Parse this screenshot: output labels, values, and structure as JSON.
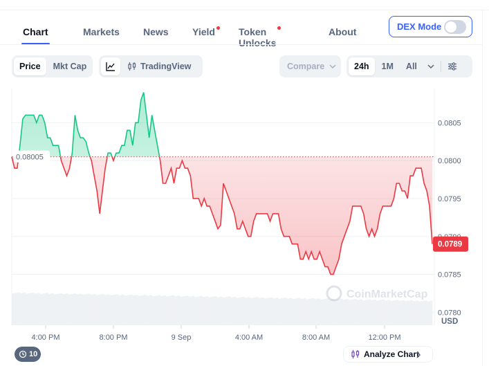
{
  "nav": {
    "tabs": [
      {
        "label": "Chart",
        "active": true,
        "dot": false
      },
      {
        "label": "Markets",
        "active": false,
        "dot": false
      },
      {
        "label": "News",
        "active": false,
        "dot": false
      },
      {
        "label": "Yield",
        "active": false,
        "dot": true
      },
      {
        "label": "Token Unlocks",
        "active": false,
        "dot": true
      },
      {
        "label": "About",
        "active": false,
        "dot": false
      }
    ],
    "dex_mode_label": "DEX Mode",
    "dex_mode_on": false
  },
  "toolbar": {
    "price_label": "Price",
    "mktcap_label": "Mkt Cap",
    "tradingview_label": "TradingView",
    "compare_label": "Compare",
    "range_24h": "24h",
    "range_1m": "1M",
    "range_all": "All"
  },
  "footer": {
    "history_count": "10",
    "analyze_label": "Analyze Chart"
  },
  "colors": {
    "up": "#16c784",
    "down": "#ea3943",
    "accent": "#3861fb"
  },
  "chart_data": {
    "type": "line",
    "reference_value": 0.08005,
    "reference_label": "0.08005",
    "current_value": 0.0789,
    "current_label": "0.0789",
    "currency_label": "USD",
    "watermark": "CoinMarketCap",
    "y_ticks": [
      "0.0805",
      "0.0800",
      "0.0795",
      "0.0790",
      "0.0785",
      "0.0780"
    ],
    "x_ticks": [
      "4:00 PM",
      "8:00 PM",
      "9 Sep",
      "4:00 AM",
      "8:00 AM",
      "12:00 PM"
    ],
    "price_points": [
      [
        0,
        0.08005
      ],
      [
        1,
        0.0799
      ],
      [
        2,
        0.0799
      ],
      [
        3,
        0.0802
      ],
      [
        4,
        0.08055
      ],
      [
        5,
        0.0806
      ],
      [
        6,
        0.0806
      ],
      [
        7,
        0.0806
      ],
      [
        8,
        0.0806
      ],
      [
        9,
        0.0805
      ],
      [
        10,
        0.0806
      ],
      [
        11,
        0.0806
      ],
      [
        12,
        0.0805
      ],
      [
        13,
        0.0803
      ],
      [
        14,
        0.0803
      ],
      [
        15,
        0.0802
      ],
      [
        16,
        0.0802
      ],
      [
        17,
        0.0802
      ],
      [
        18,
        0.08
      ],
      [
        19,
        0.0799
      ],
      [
        20,
        0.0798
      ],
      [
        21,
        0.0799
      ],
      [
        22,
        0.0801
      ],
      [
        23,
        0.0806
      ],
      [
        24,
        0.0804
      ],
      [
        25,
        0.0803
      ],
      [
        26,
        0.0803
      ],
      [
        27,
        0.08025
      ],
      [
        28,
        0.0801
      ],
      [
        29,
        0.08
      ],
      [
        30,
        0.0798
      ],
      [
        31,
        0.0796
      ],
      [
        32,
        0.0793
      ],
      [
        33,
        0.0796
      ],
      [
        34,
        0.0799
      ],
      [
        35,
        0.0801
      ],
      [
        36,
        0.0801
      ],
      [
        37,
        0.08
      ],
      [
        38,
        0.0801
      ],
      [
        39,
        0.0801
      ],
      [
        40,
        0.0802
      ],
      [
        41,
        0.0802
      ],
      [
        42,
        0.0804
      ],
      [
        43,
        0.0804
      ],
      [
        44,
        0.0802
      ],
      [
        45,
        0.0805
      ],
      [
        46,
        0.0805
      ],
      [
        47,
        0.0808
      ],
      [
        48,
        0.0809
      ],
      [
        49,
        0.0806
      ],
      [
        50,
        0.0803
      ],
      [
        51,
        0.0806
      ],
      [
        52,
        0.0804
      ],
      [
        53,
        0.0802
      ],
      [
        54,
        0.08
      ],
      [
        55,
        0.0797
      ],
      [
        56,
        0.0797
      ],
      [
        57,
        0.0798
      ],
      [
        58,
        0.0799
      ],
      [
        59,
        0.0797
      ],
      [
        60,
        0.0799
      ],
      [
        61,
        0.0799
      ],
      [
        62,
        0.08
      ],
      [
        63,
        0.0799
      ],
      [
        64,
        0.0799
      ],
      [
        65,
        0.0798
      ],
      [
        66,
        0.0795
      ],
      [
        67,
        0.0795
      ],
      [
        68,
        0.0795
      ],
      [
        69,
        0.0794
      ],
      [
        70,
        0.0795
      ],
      [
        71,
        0.0794
      ],
      [
        72,
        0.0794
      ],
      [
        73,
        0.0793
      ],
      [
        74,
        0.0792
      ],
      [
        75,
        0.0791
      ],
      [
        76,
        0.07915
      ],
      [
        77,
        0.0797
      ],
      [
        78,
        0.0796
      ],
      [
        79,
        0.0795
      ],
      [
        80,
        0.0794
      ],
      [
        81,
        0.0793
      ],
      [
        82,
        0.0791
      ],
      [
        83,
        0.0791
      ],
      [
        84,
        0.0792
      ],
      [
        85,
        0.0791
      ],
      [
        86,
        0.079
      ],
      [
        87,
        0.079
      ],
      [
        88,
        0.0792
      ],
      [
        89,
        0.0793
      ],
      [
        90,
        0.0793
      ],
      [
        91,
        0.0793
      ],
      [
        92,
        0.0793
      ],
      [
        93,
        0.0793
      ],
      [
        94,
        0.0792
      ],
      [
        95,
        0.0793
      ],
      [
        96,
        0.0793
      ],
      [
        97,
        0.0793
      ],
      [
        98,
        0.0791
      ],
      [
        99,
        0.079
      ],
      [
        100,
        0.079
      ],
      [
        101,
        0.079
      ],
      [
        102,
        0.0789
      ],
      [
        103,
        0.0789
      ],
      [
        104,
        0.0789
      ],
      [
        105,
        0.0787
      ],
      [
        106,
        0.0787
      ],
      [
        107,
        0.0788
      ],
      [
        108,
        0.0787
      ],
      [
        109,
        0.0788
      ],
      [
        110,
        0.0787
      ],
      [
        111,
        0.0787
      ],
      [
        112,
        0.0788
      ],
      [
        113,
        0.0787
      ],
      [
        114,
        0.0786
      ],
      [
        115,
        0.0786
      ],
      [
        116,
        0.0785
      ],
      [
        117,
        0.0785
      ],
      [
        118,
        0.0786
      ],
      [
        119,
        0.0787
      ],
      [
        120,
        0.0789
      ],
      [
        121,
        0.079
      ],
      [
        122,
        0.0791
      ],
      [
        123,
        0.0792
      ],
      [
        124,
        0.0794
      ],
      [
        125,
        0.0794
      ],
      [
        126,
        0.0794
      ],
      [
        127,
        0.0794
      ],
      [
        128,
        0.0793
      ],
      [
        129,
        0.0791
      ],
      [
        130,
        0.079
      ],
      [
        131,
        0.0791
      ],
      [
        132,
        0.079
      ],
      [
        133,
        0.0791
      ],
      [
        134,
        0.0793
      ],
      [
        135,
        0.0794
      ],
      [
        136,
        0.0794
      ],
      [
        137,
        0.0794
      ],
      [
        138,
        0.0794
      ],
      [
        139,
        0.0795
      ],
      [
        140,
        0.0797
      ],
      [
        141,
        0.0797
      ],
      [
        142,
        0.0796
      ],
      [
        143,
        0.0796
      ],
      [
        144,
        0.0795
      ],
      [
        145,
        0.0798
      ],
      [
        146,
        0.0798
      ],
      [
        147,
        0.0799
      ],
      [
        148,
        0.0799
      ],
      [
        149,
        0.0799
      ],
      [
        150,
        0.0797
      ],
      [
        151,
        0.0796
      ],
      [
        152,
        0.0794
      ],
      [
        153,
        0.0789
      ]
    ]
  }
}
